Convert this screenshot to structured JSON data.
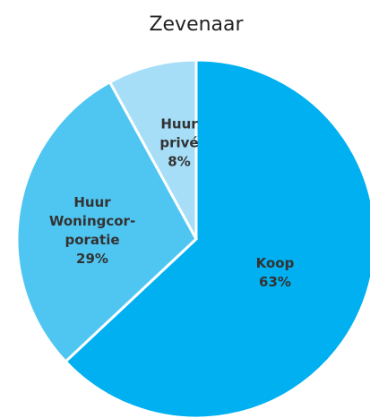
{
  "chart_data": {
    "type": "pie",
    "title": "Zevenaar",
    "categories": [
      [
        "Koop"
      ],
      [
        "Huur",
        "Woningcor-",
        "poratie"
      ],
      [
        "Huur",
        "privé"
      ]
    ],
    "values": [
      63,
      29,
      8
    ],
    "value_labels": [
      "63%",
      "29%",
      "8%"
    ],
    "colors": [
      "#00b0f0",
      "#4fc6f2",
      "#a6def8"
    ]
  }
}
